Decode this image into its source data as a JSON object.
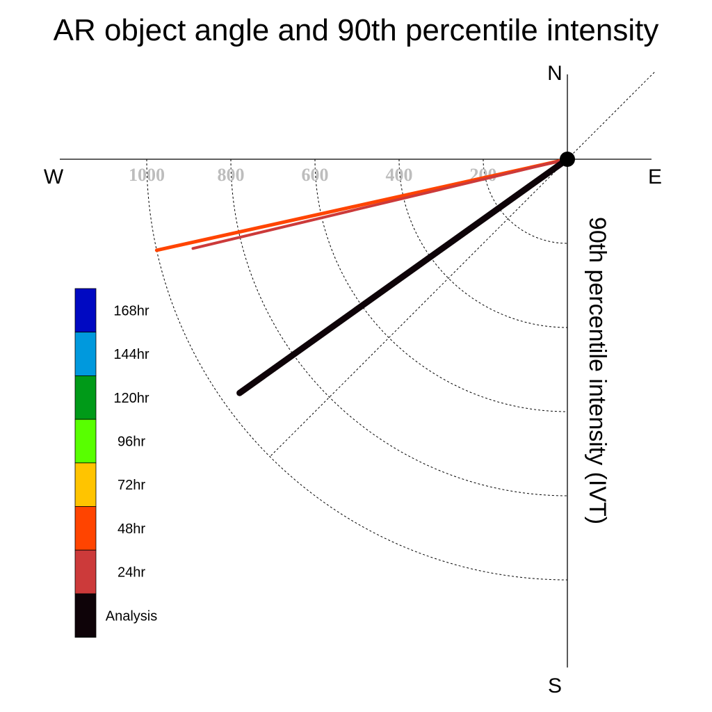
{
  "chart_data": {
    "type": "polar-vector",
    "title": "AR object angle and 90th percentile intensity",
    "ylabel": "90th percentile intensity (IVT)",
    "compass": {
      "north": "N",
      "south": "S",
      "east": "E",
      "west": "W"
    },
    "radial_ticks": [
      200,
      400,
      600,
      800,
      1000
    ],
    "radial_tick_labels": [
      "200",
      "400",
      "600",
      "800",
      "1000"
    ],
    "radial_max": 1000,
    "diagonal_guides": [
      45,
      225
    ],
    "series": [
      {
        "name": "48hr",
        "color": "#ff4400",
        "angle_deg": 257.5,
        "intensity": 1000
      },
      {
        "name": "24hr",
        "color": "#cc3a3a",
        "angle_deg": 256.6,
        "intensity": 915
      },
      {
        "name": "Analysis",
        "color": "#0e0308",
        "angle_deg": 234.5,
        "intensity": 957
      }
    ],
    "legend": {
      "entries": [
        {
          "label": "168hr",
          "color": "#0009c2"
        },
        {
          "label": "144hr",
          "color": "#0099dd"
        },
        {
          "label": "120hr",
          "color": "#009a18"
        },
        {
          "label": "96hr",
          "color": "#58ff00"
        },
        {
          "label": "72hr",
          "color": "#ffc400"
        },
        {
          "label": "48hr",
          "color": "#ff4400"
        },
        {
          "label": "24hr",
          "color": "#cc3a3a"
        },
        {
          "label": "Analysis",
          "color": "#0e0308"
        }
      ]
    }
  }
}
